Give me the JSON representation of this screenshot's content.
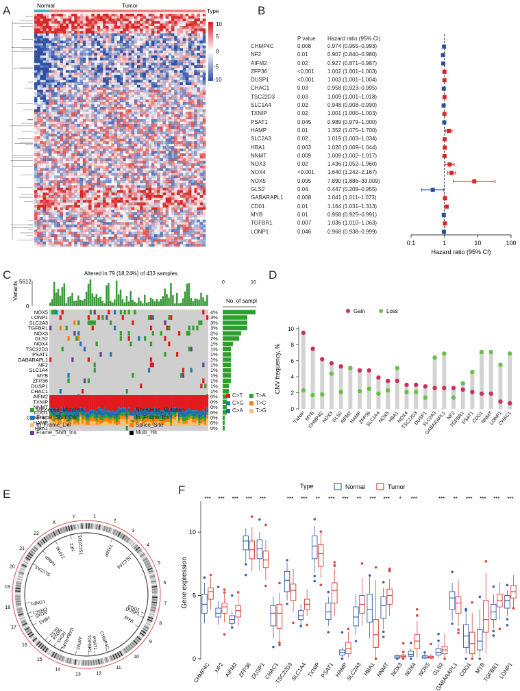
{
  "panels": {
    "a": {
      "label": "A",
      "groups": [
        "Normal",
        "Tumor"
      ],
      "type_label": "Type",
      "scale_ticks": [
        "10",
        "5",
        "0",
        "-5",
        "-10"
      ]
    },
    "b": {
      "label": "B",
      "col_pvalue": "P value",
      "col_hr": "Hazard ratio (95% CI)",
      "genes": [
        "CHMP4C",
        "NF2",
        "AIFM2",
        "ZFP36",
        "DUSP1",
        "CHAC1",
        "TSC22D3",
        "SLC1A4",
        "TXNIP",
        "PSAT1",
        "HAMP",
        "SLC2A3",
        "HBA1",
        "NNMT",
        "NOX3",
        "NOX4",
        "NOX5",
        "GLS2",
        "GABARAPL1",
        "CD01",
        "MYB",
        "TGFBR1",
        "LONP1"
      ],
      "pvalues": [
        "0.008",
        "0.01",
        "0.02",
        "<0.001",
        "<0.001",
        "0.03",
        "0.03",
        "0.02",
        "0.02",
        "0.045",
        "0.01",
        "0.02",
        "0.003",
        "0.009",
        "0.02",
        "<0.001",
        "0.005",
        "0.04",
        "0.008",
        "0.01",
        "0.01",
        "0.007",
        "0.046"
      ],
      "hr_text": [
        "0.974 (0.955–0.993)",
        "0.907 (0.840–0.980)",
        "0.927 (0.871–0.987)",
        "1.002 (1.001–1.003)",
        "1.003 (1.001–1.004)",
        "0.958 (0.923–0.995)",
        "1.009 (1.001–1.018)",
        "0.948 (0.908–0.990)",
        "1.001 (1.000–1.003)",
        "0.989 (0.979–1.000)",
        "1.352 (1.075–1.700)",
        "1.019 (1.003–1.034)",
        "1.026 (1.009–1.044)",
        "1.009 (1.002–1.017)",
        "1.436 (1.052–1.960)",
        "1.640 (1.242–2.167)",
        "7.890 (1.886–33.009)",
        "0.447 (0.209–0.955)",
        "1.041 (1.011–1.073)",
        "1.164 (1.031–1.313)",
        "0.958 (0.925–0.991)",
        "1.036 (1.010–1.063)",
        "0.968 (0.938–0.999)"
      ],
      "axis_ticks": [
        "0.1",
        "1",
        "10",
        "100"
      ],
      "axis_label": "Hazard ratio (95% CI)"
    },
    "c": {
      "label": "C",
      "title": "Altered in 79 (18.24%) of 433 samples.",
      "variants_label": "Variants",
      "variants_max": "5612",
      "variants_min": "0",
      "samples_label": "No. of samples",
      "samples_min": "0",
      "samples_max": "16",
      "genes": [
        "NOX5",
        "LONP1",
        "SLC2A3",
        "TGFBR1",
        "NOX3",
        "GLS2",
        "NOX4",
        "TSC22D3",
        "PSAT1",
        "GABARAPL1",
        "NF2",
        "SLC1A4",
        "MYB",
        "ZFP36",
        "DUSP1",
        "CHAC1",
        "AIFM2",
        "TXNIP",
        "NNMT",
        "CDO1",
        "CHMP4C",
        "HAMP",
        "HBA1"
      ],
      "percents": [
        "4%",
        "3%",
        "3%",
        "3%",
        "2%",
        "2%",
        "1%",
        "1%",
        "1%",
        "1%",
        "1%",
        "1%",
        "1%",
        "1%",
        "1%",
        "1%",
        "0%",
        "0%",
        "0%",
        "0%",
        "0%",
        "0%",
        "0%"
      ],
      "sample_counts": [
        16,
        12,
        12,
        12,
        9,
        8,
        5,
        4,
        4,
        4,
        4,
        4,
        4,
        4,
        3,
        3,
        2,
        2,
        2,
        2,
        1,
        1,
        1
      ],
      "snv_classes": [
        "C>T",
        "C>G",
        "C>A",
        "T>A",
        "T>C",
        "T>G"
      ],
      "mutation_types": [
        "Missense_Mutation",
        "Nonsense_Mutation",
        "Frame_Shift_Del",
        "In_Frame_Ins",
        "In_Frame_Del",
        "Splice_Site",
        "Frame_Shift_Ins",
        "Multi_Hit"
      ]
    },
    "d": {
      "label": "D",
      "legend": [
        "Gain",
        "Loss"
      ],
      "ylabel": "CNV frequency, %",
      "y_ticks": [
        "0",
        "2",
        "4",
        "6",
        "8",
        "10"
      ]
    },
    "e": {
      "label": "E",
      "chromosomes": [
        "1",
        "2",
        "3",
        "4",
        "5",
        "6",
        "7",
        "8",
        "9",
        "10",
        "11",
        "12",
        "13",
        "14",
        "15",
        "16",
        "17",
        "18",
        "19",
        "20",
        "21",
        "22",
        "X",
        "Y"
      ],
      "genes": [
        "TXNIP",
        "SLC1A4",
        "CDO1",
        "DUSP1",
        "MYB",
        "CHMP4C",
        "PSAT1",
        "TGFBR1",
        "AIFM2",
        "GABARAPL1",
        "NOX3",
        "NOX4",
        "GLS2",
        "HBA1",
        "NOX5",
        "CHAC1",
        "LONP1",
        "SLC2A3",
        "HAMP",
        "ZFP36",
        "NF2",
        "TSC22D3"
      ]
    },
    "f": {
      "label": "F",
      "legend_title": "Type",
      "legend": [
        "Normal",
        "Tumor"
      ],
      "ylabel": "Gene expression",
      "y_ticks": [
        "0",
        "5",
        "10"
      ],
      "genes": [
        "CHMP4C",
        "NF2",
        "AIFM2",
        "ZFP36",
        "DUSP1",
        "CHAC1",
        "TSC22D3",
        "SLC1A4",
        "TXNIP",
        "PSAT1",
        "HAMP",
        "SLC2A3",
        "HBA1",
        "NNMT",
        "NOX3",
        "NOX4",
        "NOX5",
        "GLS2",
        "GABARAPL1",
        "CDO1",
        "MYB",
        "TGFBR1",
        "LONP1"
      ],
      "signif": [
        "***",
        "***",
        "***",
        "***",
        "***",
        "",
        "***",
        "***",
        "**",
        "***",
        "***",
        "**",
        "***",
        "***",
        "*",
        "***",
        "",
        "***",
        "**",
        "***",
        "***",
        "***",
        "***"
      ]
    }
  },
  "chart_data": [
    {
      "type": "forest",
      "panel": "B",
      "categories": [
        "CHMP4C",
        "NF2",
        "AIFM2",
        "ZFP36",
        "DUSP1",
        "CHAC1",
        "TSC22D3",
        "SLC1A4",
        "TXNIP",
        "PSAT1",
        "HAMP",
        "SLC2A3",
        "HBA1",
        "NNMT",
        "NOX3",
        "NOX4",
        "NOX5",
        "GLS2",
        "GABARAPL1",
        "CD01",
        "MYB",
        "TGFBR1",
        "LONP1"
      ],
      "hr": [
        0.974,
        0.907,
        0.927,
        1.002,
        1.003,
        0.958,
        1.009,
        0.948,
        1.001,
        0.989,
        1.352,
        1.019,
        1.026,
        1.009,
        1.436,
        1.64,
        7.89,
        0.447,
        1.041,
        1.164,
        0.958,
        1.036,
        0.968
      ],
      "lower": [
        0.955,
        0.84,
        0.871,
        1.001,
        1.001,
        0.923,
        1.001,
        0.908,
        1.0,
        0.979,
        1.075,
        1.003,
        1.009,
        1.002,
        1.052,
        1.242,
        1.886,
        0.209,
        1.011,
        1.031,
        0.925,
        1.01,
        0.938
      ],
      "upper": [
        0.993,
        0.98,
        0.987,
        1.003,
        1.004,
        0.995,
        1.018,
        0.99,
        1.003,
        1.0,
        1.7,
        1.034,
        1.044,
        1.017,
        1.96,
        2.167,
        33.009,
        0.955,
        1.073,
        1.313,
        0.991,
        1.063,
        0.999
      ],
      "xscale": "log",
      "xlim": [
        0.1,
        100
      ],
      "xlabel": "Hazard ratio (95% CI)"
    },
    {
      "type": "scatter",
      "panel": "D",
      "categories": [
        "TXNIP",
        "MYB",
        "CHMP4C",
        "NOX3",
        "GLS2",
        "AIFM2",
        "HAMP",
        "ZFP36",
        "SLC1A4",
        "NOX5",
        "HBA1",
        "NOX4",
        "TSC22D3",
        "DUSP1",
        "SLC2A3",
        "GABARAPL1",
        "NF2",
        "TGFBR1",
        "PSAT1",
        "CDO1",
        "NNMT",
        "LONP1",
        "CHAC1"
      ],
      "series": [
        {
          "name": "Gain",
          "values": [
            9.5,
            7.5,
            6.2,
            5.7,
            5.3,
            5.1,
            4.8,
            4.8,
            3.9,
            3.5,
            3.5,
            3.0,
            3.0,
            2.8,
            2.6,
            2.6,
            2.6,
            2.4,
            2.1,
            1.9,
            1.9,
            0.9,
            0.7
          ]
        },
        {
          "name": "Loss",
          "values": [
            2.3,
            1.7,
            1.8,
            4.4,
            2.1,
            5.1,
            2.2,
            2.5,
            1.9,
            2.3,
            5.1,
            2.1,
            2.1,
            1.4,
            6.4,
            6.9,
            1.4,
            3.2,
            4.6,
            7.1,
            7.1,
            5.5,
            6.9
          ]
        }
      ],
      "ylabel": "CNV frequency, %",
      "ylim": [
        0,
        10
      ]
    },
    {
      "type": "boxplot",
      "panel": "F",
      "categories": [
        "CHMP4C",
        "NF2",
        "AIFM2",
        "ZFP36",
        "DUSP1",
        "CHAC1",
        "TSC22D3",
        "SLC1A4",
        "TXNIP",
        "PSAT1",
        "HAMP",
        "SLC2A3",
        "HBA1",
        "NNMT",
        "NOX3",
        "NOX4",
        "NOX5",
        "GLS2",
        "GABARAPL1",
        "CDO1",
        "MYB",
        "TGFBR1",
        "LONP1"
      ],
      "series": [
        {
          "name": "Normal",
          "q1": [
            3.6,
            3.3,
            2.8,
            8.6,
            7.9,
            2.6,
            5.3,
            3.1,
            7.9,
            3.1,
            0.3,
            2.6,
            2.9,
            3.2,
            0.05,
            0.2,
            0.05,
            0.3,
            3.9,
            0.9,
            0.7,
            3.1,
            4.0
          ],
          "median": [
            4.3,
            3.6,
            3.1,
            9.3,
            8.7,
            3.6,
            6.2,
            3.4,
            8.9,
            3.7,
            0.5,
            3.3,
            3.9,
            4.2,
            0.15,
            0.35,
            0.15,
            0.5,
            4.8,
            1.8,
            1.4,
            3.7,
            4.6
          ],
          "q3": [
            5.1,
            4.0,
            3.4,
            9.7,
            9.4,
            4.2,
            6.9,
            3.8,
            9.7,
            4.4,
            0.7,
            4.1,
            5.1,
            4.9,
            0.25,
            0.6,
            0.25,
            0.8,
            5.3,
            2.7,
            2.3,
            4.3,
            5.0
          ],
          "min": [
            2.8,
            2.7,
            2.5,
            7.6,
            7.0,
            1.6,
            4.6,
            2.6,
            6.8,
            2.6,
            0.1,
            1.9,
            1.6,
            2.3,
            0.0,
            0.1,
            0.0,
            0.1,
            3.0,
            0.4,
            0.2,
            2.4,
            3.4
          ],
          "max": [
            6.0,
            4.6,
            3.8,
            10.3,
            10.0,
            4.9,
            7.6,
            4.3,
            10.5,
            4.9,
            0.9,
            5.1,
            6.5,
            5.6,
            0.4,
            0.8,
            0.4,
            1.2,
            6.0,
            3.7,
            3.9,
            5.1,
            5.4
          ]
        },
        {
          "name": "Tumor",
          "q1": [
            4.7,
            3.6,
            3.3,
            7.9,
            7.2,
            2.4,
            4.6,
            3.9,
            7.3,
            4.4,
            0.4,
            3.6,
            0.9,
            4.3,
            0.1,
            0.8,
            0.05,
            0.4,
            3.6,
            0.4,
            2.1,
            4.1,
            4.8
          ],
          "median": [
            5.3,
            4.1,
            3.8,
            8.6,
            7.8,
            3.6,
            5.4,
            4.3,
            8.3,
            5.4,
            0.8,
            4.3,
            1.9,
            5.0,
            0.2,
            1.4,
            0.12,
            0.7,
            4.4,
            1.2,
            3.1,
            4.6,
            5.3
          ],
          "q3": [
            5.6,
            4.4,
            4.2,
            9.3,
            8.5,
            4.3,
            5.9,
            4.7,
            9.0,
            6.0,
            1.3,
            5.0,
            3.1,
            5.5,
            0.3,
            1.9,
            0.2,
            1.0,
            4.9,
            2.1,
            4.6,
            5.1,
            5.8
          ],
          "min": [
            3.9,
            2.9,
            2.6,
            6.9,
            6.2,
            1.4,
            3.7,
            3.4,
            6.4,
            3.4,
            0.1,
            2.6,
            0.1,
            3.4,
            0.0,
            0.1,
            0.0,
            0.1,
            2.6,
            0.0,
            0.4,
            3.1,
            4.0
          ],
          "max": [
            6.4,
            5.1,
            5.0,
            10.4,
            9.4,
            5.2,
            7.1,
            5.5,
            10.0,
            7.1,
            2.1,
            6.4,
            6.2,
            6.3,
            0.5,
            3.0,
            0.4,
            2.0,
            6.2,
            3.6,
            6.8,
            6.0,
            6.6
          ]
        }
      ],
      "ylabel": "Gene expression",
      "ylim": [
        0,
        12
      ]
    }
  ]
}
